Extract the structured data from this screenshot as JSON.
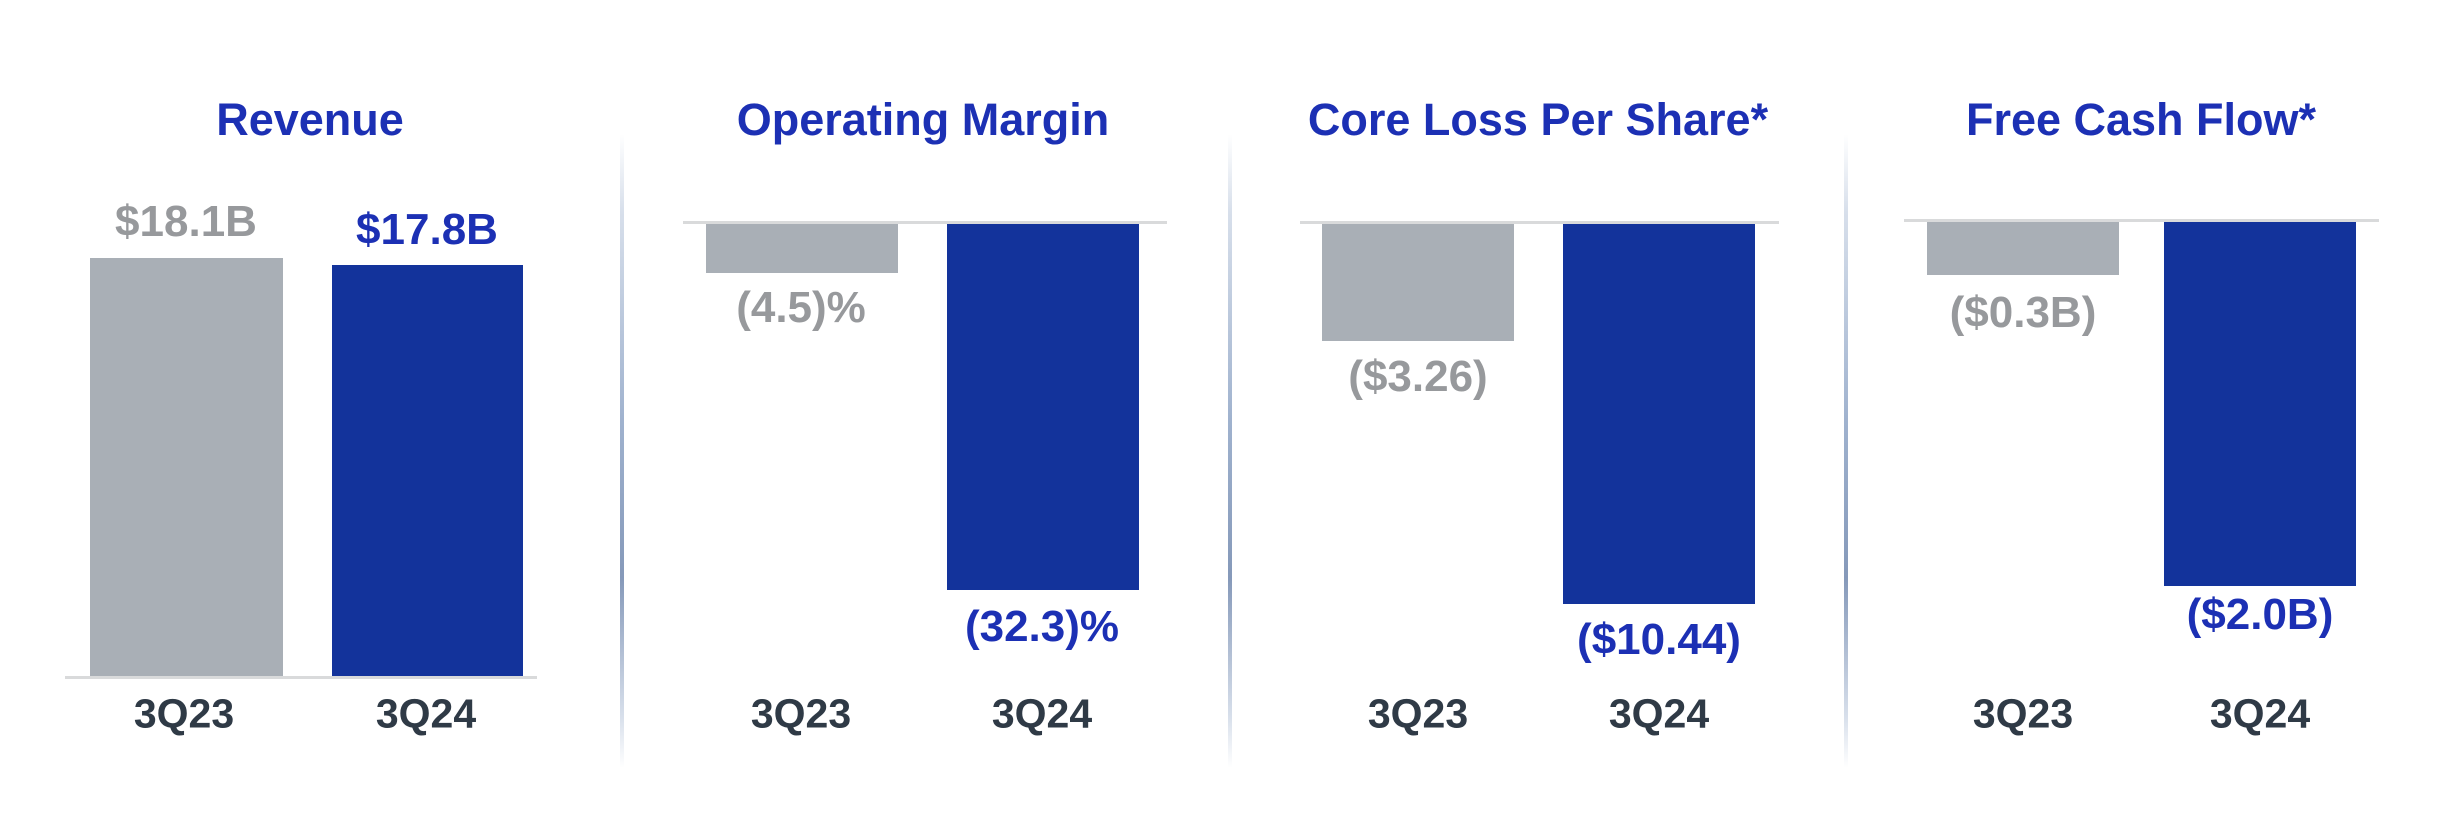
{
  "page": {
    "background": "#ffffff",
    "description": "Quarterly financial results comparison, 3Q23 vs 3Q24"
  },
  "colors": {
    "bar_blue": "#13339B",
    "bar_gray": "#A9AFB6",
    "text_blue": "#1C30B4",
    "text_gray": "#97999C",
    "category_label": "#2F3A46",
    "axis_line": "#D9DADB",
    "divider": "#8FA5C6"
  },
  "chart_data": [
    {
      "type": "bar",
      "title": "Revenue",
      "categories": [
        "3Q23",
        "3Q24"
      ],
      "values": [
        18.1,
        17.8
      ],
      "unit": "$B",
      "value_labels": [
        "$18.1B",
        "$17.8B"
      ],
      "series_colors": [
        "gray",
        "blue"
      ],
      "bars_direction": "up",
      "axis_position": "bottom",
      "grid": false,
      "legend": false
    },
    {
      "type": "bar",
      "title": "Operating Margin",
      "categories": [
        "3Q23",
        "3Q24"
      ],
      "values": [
        -4.5,
        -32.3
      ],
      "unit": "%",
      "value_labels": [
        "(4.5)%",
        "(32.3)%"
      ],
      "series_colors": [
        "gray",
        "blue"
      ],
      "bars_direction": "down",
      "axis_position": "top",
      "grid": false,
      "legend": false
    },
    {
      "type": "bar",
      "title": "Core Loss Per Share*",
      "categories": [
        "3Q23",
        "3Q24"
      ],
      "values": [
        -3.26,
        -10.44
      ],
      "unit": "$",
      "value_labels": [
        "($3.26)",
        "($10.44)"
      ],
      "series_colors": [
        "gray",
        "blue"
      ],
      "bars_direction": "down",
      "axis_position": "top",
      "grid": false,
      "legend": false
    },
    {
      "type": "bar",
      "title": "Free Cash Flow*",
      "categories": [
        "3Q23",
        "3Q24"
      ],
      "values": [
        -0.3,
        -2.0
      ],
      "unit": "$B",
      "value_labels": [
        "($0.3B)",
        "($2.0B)"
      ],
      "series_colors": [
        "gray",
        "blue"
      ],
      "bars_direction": "down",
      "axis_position": "top",
      "grid": false,
      "legend": false
    }
  ]
}
